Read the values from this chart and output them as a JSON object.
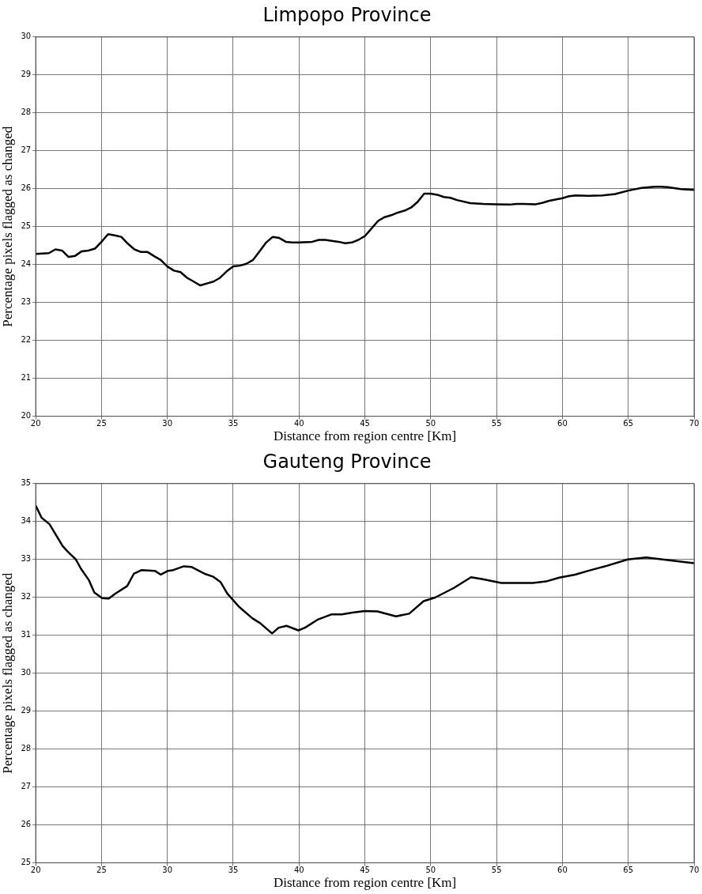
{
  "chart_data": [
    {
      "type": "line",
      "title": "Limpopo Province",
      "xlabel": "Distance from region centre [Km]",
      "ylabel": "Percentage pixels flagged as changed",
      "x": [
        20,
        21,
        21.5,
        22,
        22.5,
        23,
        23.5,
        24,
        24.5,
        25,
        25.5,
        26,
        26.5,
        27,
        27.5,
        28,
        28.5,
        29,
        29.5,
        30,
        30.5,
        31,
        31.5,
        32,
        32.5,
        33,
        33.5,
        34,
        34.5,
        35,
        35.5,
        36,
        36.5,
        37,
        37.5,
        38,
        38.5,
        39,
        39.5,
        40,
        41,
        41.5,
        42,
        43,
        43.5,
        44,
        44.5,
        45,
        45.5,
        46,
        46.5,
        47,
        47.5,
        48,
        48.5,
        49,
        49.5,
        50,
        50.5,
        51,
        51.5,
        52,
        53,
        54,
        55,
        56,
        56.5,
        57,
        58,
        58.5,
        59,
        60,
        60.5,
        61,
        62,
        63,
        64,
        65,
        66,
        67,
        67.5,
        68,
        69,
        70
      ],
      "series": [
        {
          "color": "#000000",
          "values": [
            24.28,
            24.3,
            24.4,
            24.37,
            24.2,
            24.23,
            24.35,
            24.37,
            24.42,
            24.6,
            24.8,
            24.77,
            24.73,
            24.55,
            24.4,
            24.33,
            24.33,
            24.22,
            24.12,
            23.95,
            23.84,
            23.8,
            23.65,
            23.55,
            23.45,
            23.5,
            23.55,
            23.65,
            23.82,
            23.95,
            23.97,
            24.02,
            24.12,
            24.35,
            24.58,
            24.73,
            24.7,
            24.6,
            24.58,
            24.58,
            24.6,
            24.65,
            24.65,
            24.6,
            24.56,
            24.58,
            24.65,
            24.75,
            24.95,
            25.15,
            25.25,
            25.3,
            25.37,
            25.42,
            25.5,
            25.65,
            25.87,
            25.87,
            25.84,
            25.78,
            25.76,
            25.7,
            25.62,
            25.6,
            25.59,
            25.58,
            25.6,
            25.6,
            25.59,
            25.63,
            25.68,
            25.75,
            25.8,
            25.82,
            25.81,
            25.82,
            25.86,
            25.95,
            26.02,
            26.05,
            26.05,
            26.04,
            25.99,
            25.97
          ]
        }
      ],
      "xlim": [
        20,
        70
      ],
      "xticks": [
        20,
        25,
        30,
        35,
        40,
        45,
        50,
        55,
        60,
        65,
        70
      ],
      "ylim": [
        20,
        30
      ],
      "yticks": [
        20,
        21,
        22,
        23,
        24,
        25,
        26,
        27,
        28,
        29,
        30
      ],
      "grid": true,
      "marker": "none",
      "line_style": "solid",
      "legend": false
    },
    {
      "type": "line",
      "title": "Gauteng Province",
      "xlabel": "Distance from region centre [Km]",
      "ylabel": "Percentage pixels flagged as changed",
      "x": [
        20,
        20.45,
        21.05,
        22.05,
        22.45,
        23.05,
        23.45,
        24.05,
        24.45,
        25.05,
        25.55,
        26.05,
        26.95,
        27.45,
        28.05,
        29.05,
        29.5,
        30.05,
        30.45,
        31.25,
        31.85,
        32.85,
        33.45,
        34.05,
        34.55,
        35.45,
        36.45,
        37.05,
        37.95,
        38.45,
        39.05,
        39.95,
        40.45,
        41.45,
        42.45,
        43.25,
        44.05,
        45,
        45.96,
        47.36,
        48.36,
        49.46,
        50.36,
        51.76,
        53.06,
        53.96,
        55.36,
        57.76,
        58.76,
        59.76,
        60.96,
        61.96,
        63.36,
        64.96,
        66.36,
        68.36,
        70
      ],
      "series": [
        {
          "color": "#000000",
          "values": [
            34.42,
            34.1,
            33.93,
            33.35,
            33.2,
            33.0,
            32.75,
            32.45,
            32.13,
            31.98,
            31.97,
            32.1,
            32.3,
            32.62,
            32.72,
            32.7,
            32.6,
            32.7,
            32.72,
            32.82,
            32.8,
            32.62,
            32.55,
            32.4,
            32.1,
            31.75,
            31.45,
            31.32,
            31.05,
            31.2,
            31.25,
            31.13,
            31.2,
            31.42,
            31.55,
            31.55,
            31.6,
            31.64,
            31.63,
            31.5,
            31.57,
            31.9,
            32.0,
            32.25,
            32.53,
            32.48,
            32.38,
            32.38,
            32.42,
            32.52,
            32.6,
            32.7,
            32.83,
            33.0,
            33.05,
            32.97,
            32.9
          ]
        }
      ],
      "xlim": [
        20,
        70
      ],
      "xticks": [
        20,
        25,
        30,
        35,
        40,
        45,
        50,
        55,
        60,
        65,
        70
      ],
      "ylim": [
        25,
        35
      ],
      "yticks": [
        25,
        26,
        27,
        28,
        29,
        30,
        31,
        32,
        33,
        34,
        35
      ],
      "grid": true,
      "marker": "none",
      "line_style": "solid",
      "legend": false
    }
  ]
}
